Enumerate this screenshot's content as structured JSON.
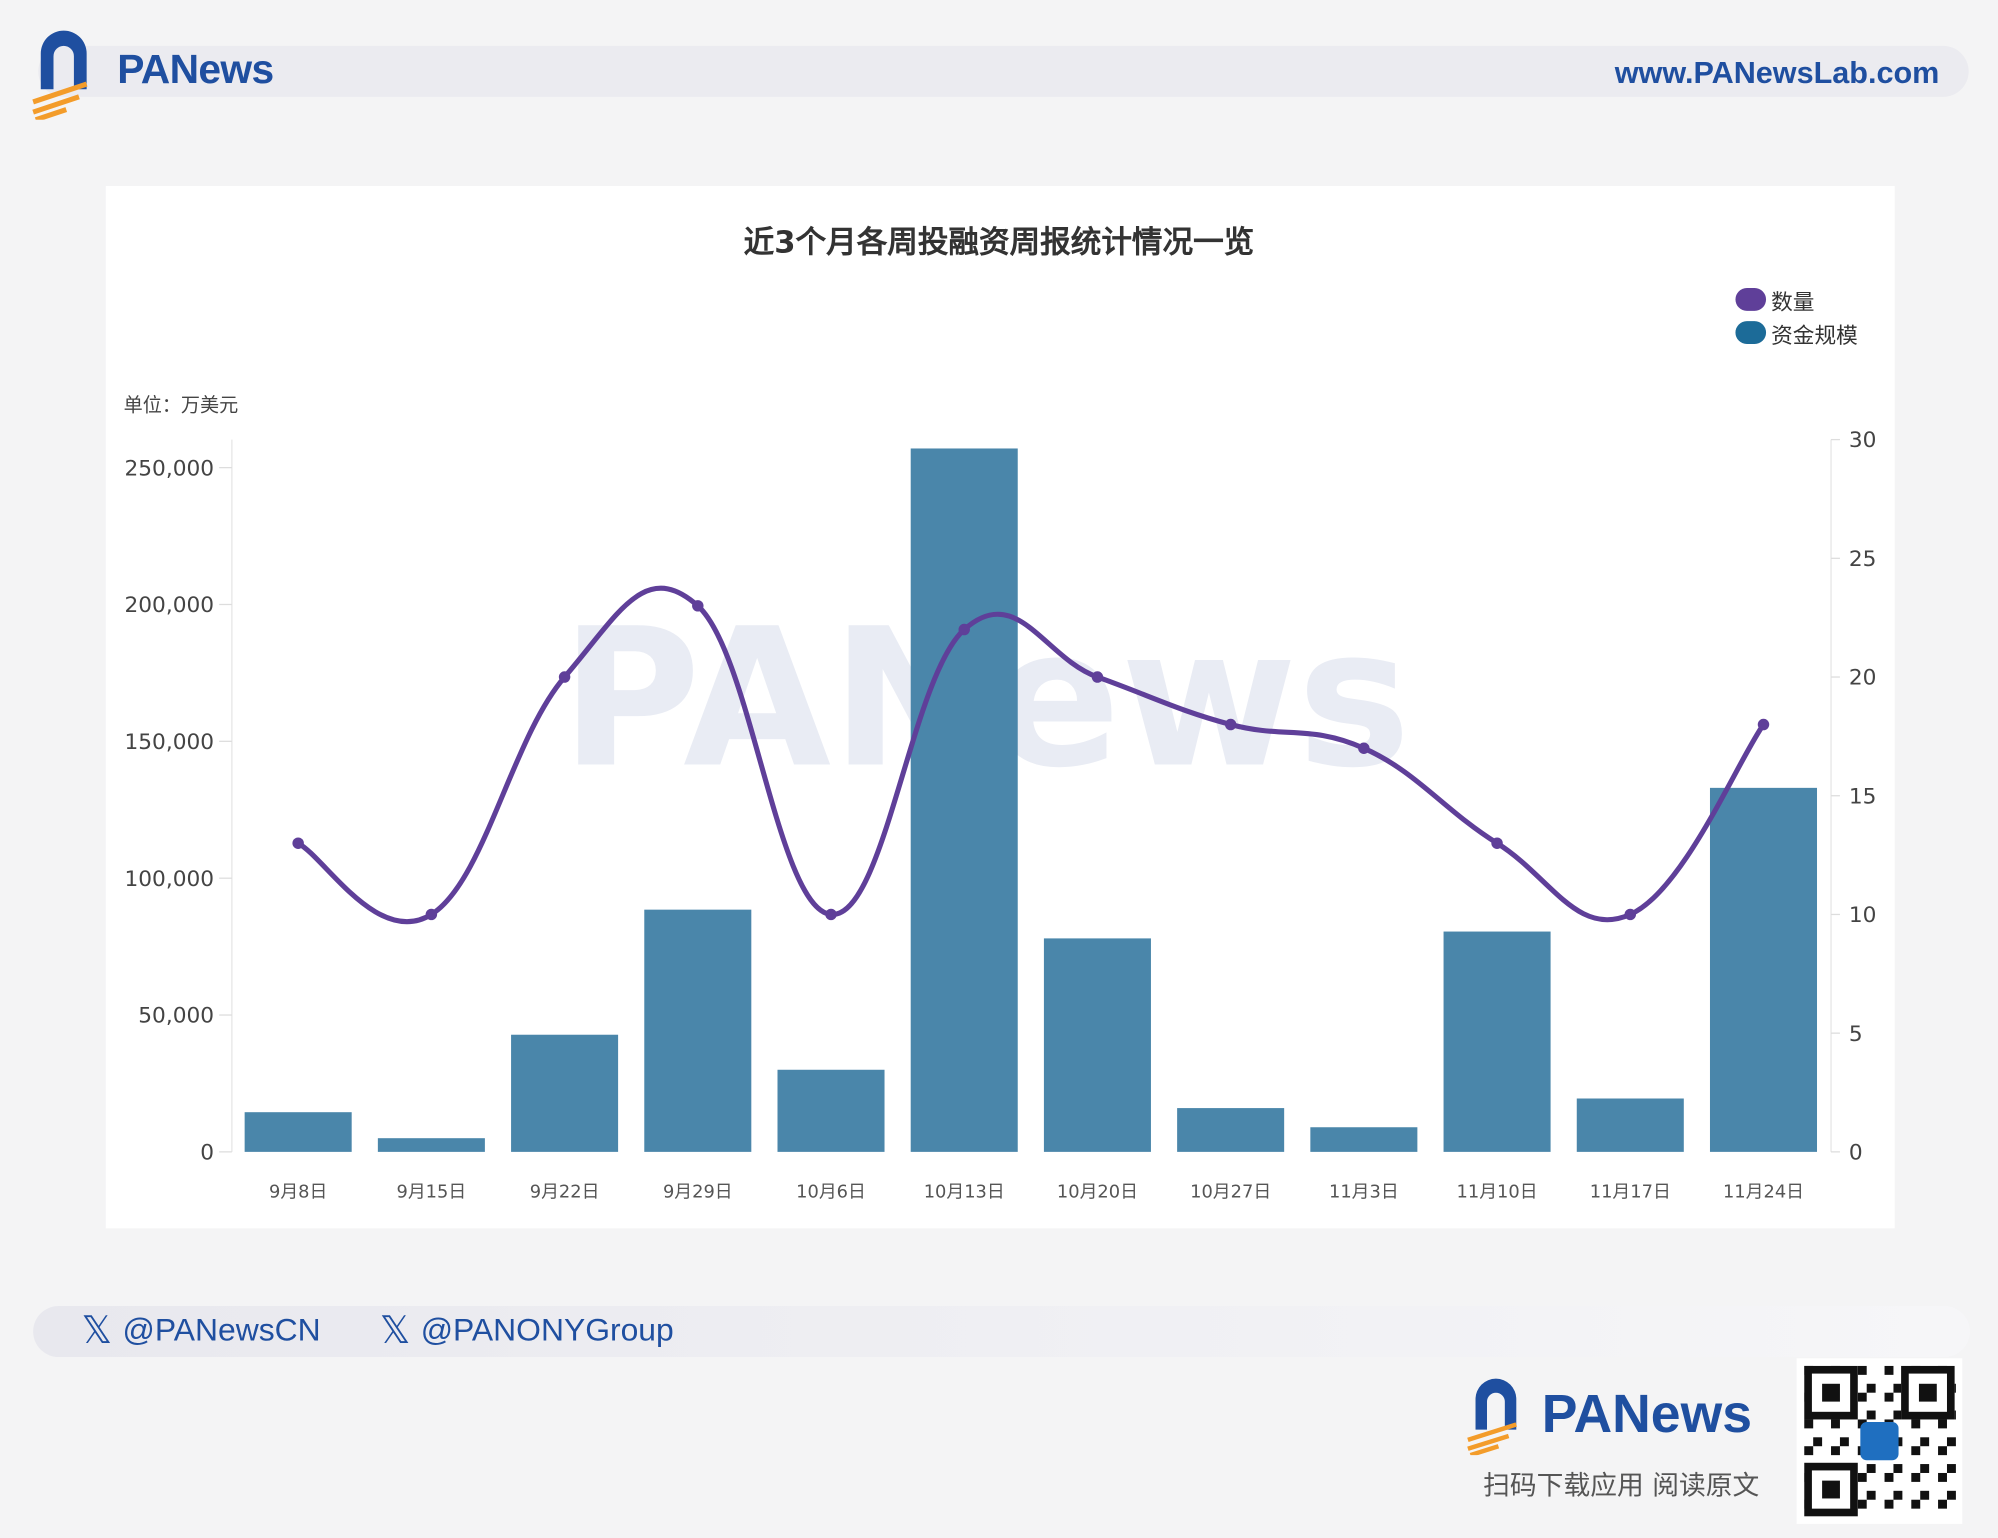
{
  "header": {
    "brand": "PANews",
    "website": "www.PANewsLab.com"
  },
  "chart_data": {
    "type": "bar+line",
    "title": "近3个月各周投融资周报统计情况一览",
    "unit_label": "单位：万美元",
    "categories": [
      "9月8日",
      "9月15日",
      "9月22日",
      "9月29日",
      "10月6日",
      "10月13日",
      "10月20日",
      "10月27日",
      "11月3日",
      "11月10日",
      "11月17日",
      "11月24日"
    ],
    "series": [
      {
        "name": "资金规模",
        "type": "bar",
        "axis": "left",
        "color": "#4a86aa",
        "values": [
          14500,
          5000,
          42800,
          88500,
          30000,
          257000,
          78000,
          16000,
          9000,
          80500,
          19500,
          133000
        ]
      },
      {
        "name": "数量",
        "type": "line",
        "axis": "right",
        "color": "#5f3f99",
        "values": [
          13,
          10,
          20,
          23,
          10,
          22,
          20,
          18,
          17,
          13,
          10,
          18
        ]
      }
    ],
    "left_axis": {
      "ylim": [
        0,
        250000
      ],
      "ticks": [
        "0",
        "50,000",
        "100,000",
        "150,000",
        "200,000",
        "250,000"
      ]
    },
    "right_axis": {
      "ylim": [
        0,
        30
      ],
      "ticks": [
        "0",
        "5",
        "10",
        "15",
        "20",
        "25",
        "30"
      ]
    },
    "legend": {
      "placement": "top-right",
      "entries": [
        "数量",
        "资金规模"
      ]
    },
    "grid": false
  },
  "footer": {
    "twitter1": "@PANewsCN",
    "twitter2": "@PANONYGroup",
    "brand": "PANews",
    "download": "扫码下载应用  阅读原文"
  }
}
